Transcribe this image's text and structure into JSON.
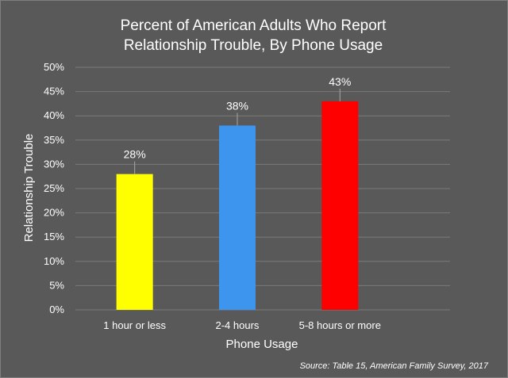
{
  "chart_data": {
    "type": "bar",
    "title_lines": [
      "Percent of American Adults Who Report",
      "Relationship Trouble, By Phone Usage"
    ],
    "categories": [
      "1 hour or less",
      "2-4 hours",
      "5-8 hours or more"
    ],
    "values": [
      28,
      38,
      43
    ],
    "data_labels": [
      "28%",
      "38%",
      "43%"
    ],
    "bar_colors": [
      "#ffff00",
      "#3d95ee",
      "#ff0000"
    ],
    "xlabel": "Phone Usage",
    "ylabel": "Relationship Trouble",
    "ylim": [
      0,
      50
    ],
    "yticks": [
      0,
      5,
      10,
      15,
      20,
      25,
      30,
      35,
      40,
      45,
      50
    ],
    "ytick_labels": [
      "0%",
      "5%",
      "10%",
      "15%",
      "20%",
      "25%",
      "30%",
      "35%",
      "40%",
      "45%",
      "50%"
    ],
    "grid": true,
    "legend": "none",
    "source": "Source: Table 15, American Family Survey, 2017"
  },
  "colors": {
    "background": "#595959",
    "text": "#ffffff",
    "gridline": "#7a7a7a"
  }
}
